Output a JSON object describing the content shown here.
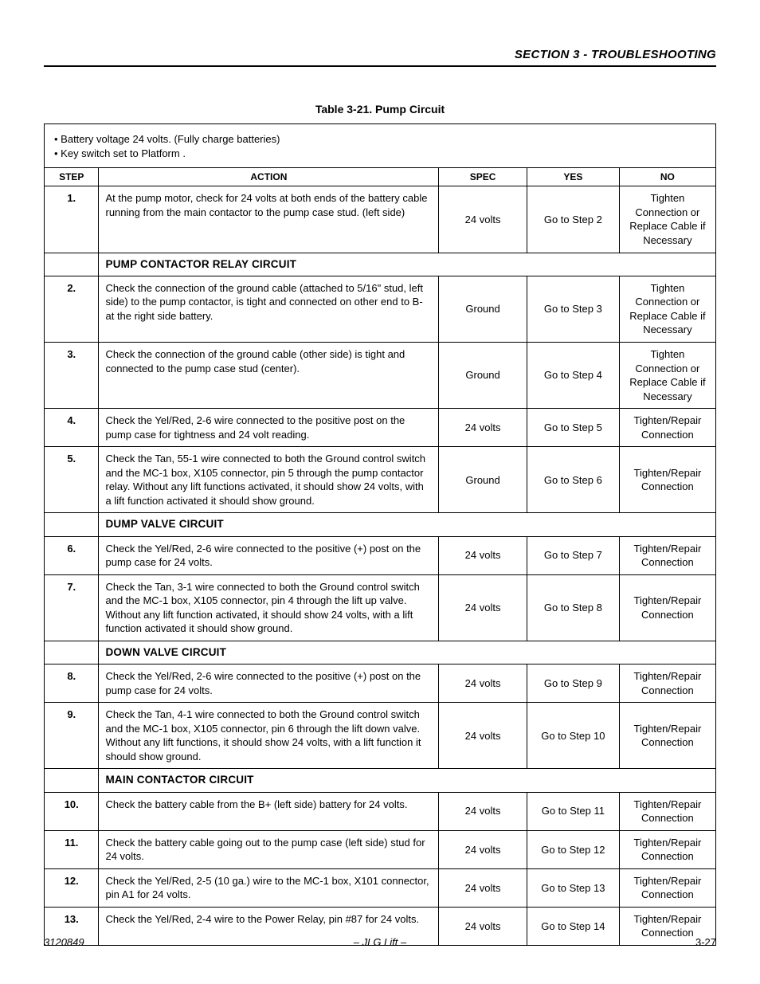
{
  "header": {
    "section_title": "SECTION 3 - TROUBLESHOOTING"
  },
  "table": {
    "title": "Table 3-21.  Pump Circuit",
    "preconditions": [
      "• Battery voltage 24 volts. (Fully charge batteries)",
      "• Key switch set to Platform ."
    ],
    "columns": {
      "step": "STEP",
      "action": "ACTION",
      "spec": "SPEC",
      "yes": "YES",
      "no": "NO"
    },
    "rows": [
      {
        "type": "data",
        "step": "1.",
        "action": "At the pump motor, check for 24 volts at both ends of the battery cable running from the main contactor to the pump case stud. (left side)",
        "spec": "24 volts",
        "yes": "Go to Step 2",
        "no": "Tighten Connection or Replace Cable if Necessary"
      },
      {
        "type": "section",
        "label": "PUMP CONTACTOR RELAY CIRCUIT"
      },
      {
        "type": "data",
        "step": "2.",
        "action": "Check the connection of the ground cable (attached to 5/16\" stud, left side) to the pump contactor,  is tight and connected on other end to B- at the right side battery.",
        "spec": "Ground",
        "yes": "Go to Step 3",
        "no": "Tighten Connection or Replace Cable if Necessary"
      },
      {
        "type": "data",
        "step": "3.",
        "action": "Check the connection of the ground cable (other side) is tight and connected to the pump case stud (center).",
        "spec": "Ground",
        "yes": "Go to Step 4",
        "no": "Tighten Connection or Replace Cable if Necessary"
      },
      {
        "type": "data",
        "step": "4.",
        "action": "Check the Yel/Red, 2-6 wire connected to the positive post on the pump case for tightness and 24 volt reading.",
        "spec": "24 volts",
        "yes": "Go to Step 5",
        "no": "Tighten/Repair Connection"
      },
      {
        "type": "data",
        "step": "5.",
        "action": "Check the Tan, 55-1 wire connected to both the Ground control switch and the MC-1 box, X105 connector, pin 5 through the pump contactor relay. Without any lift functions activated, it should show 24 volts, with a lift function activated it should show ground.",
        "spec": "Ground",
        "yes": "Go to Step 6",
        "no": "Tighten/Repair Connection"
      },
      {
        "type": "section",
        "label": "DUMP VALVE CIRCUIT"
      },
      {
        "type": "data",
        "step": "6.",
        "action": "Check the Yel/Red, 2-6 wire connected to the positive (+) post on the pump case for 24 volts.",
        "spec": "24 volts",
        "yes": "Go to Step 7",
        "no": "Tighten/Repair Connection"
      },
      {
        "type": "data",
        "step": "7.",
        "action": "Check the Tan, 3-1 wire connected to both the Ground control switch and the MC-1 box, X105 connector, pin 4 through the lift up valve. Without any lift function activated, it should show 24 volts, with a lift function activated it should show ground.",
        "spec": "24 volts",
        "yes": "Go to Step 8",
        "no": "Tighten/Repair Connection"
      },
      {
        "type": "section",
        "label": "DOWN VALVE CIRCUIT"
      },
      {
        "type": "data",
        "step": "8.",
        "action": "Check the Yel/Red, 2-6 wire connected to the positive (+) post on the pump case for 24 volts.",
        "spec": "24 volts",
        "yes": "Go to Step 9",
        "no": "Tighten/Repair Connection"
      },
      {
        "type": "data",
        "step": "9.",
        "action": "Check the Tan, 4-1 wire connected to both the Ground control switch and the MC-1 box, X105 connector, pin 6 through the lift down valve. Without any lift functions, it should show 24 volts, with a lift function it should show ground.",
        "spec": "24 volts",
        "yes": "Go to Step 10",
        "no": "Tighten/Repair Connection"
      },
      {
        "type": "section",
        "label": "MAIN CONTACTOR CIRCUIT"
      },
      {
        "type": "data",
        "step": "10.",
        "action": "Check the battery cable from the B+ (left side) battery for 24 volts.",
        "spec": "24 volts",
        "yes": "Go to Step 11",
        "no": "Tighten/Repair Connection"
      },
      {
        "type": "data",
        "step": "11.",
        "action": "Check the battery cable going out to the pump case (left side) stud for 24 volts.",
        "spec": "24 volts",
        "yes": "Go to Step 12",
        "no": "Tighten/Repair Connection"
      },
      {
        "type": "data",
        "step": "12.",
        "action": "Check the Yel/Red, 2-5 (10 ga.) wire to the MC-1 box, X101 connector, pin A1 for 24 volts.",
        "spec": "24 volts",
        "yes": "Go to Step 13",
        "no": "Tighten/Repair Connection"
      },
      {
        "type": "data",
        "step": "13.",
        "action": "Check the Yel/Red, 2-4  wire to the Power Relay, pin #87 for 24 volts.",
        "spec": "24 volts",
        "yes": "Go to Step 14",
        "no": "Tighten/Repair Connection"
      }
    ]
  },
  "footer": {
    "doc_id": "3120849",
    "center_text": "– JLG Lift –",
    "page_label": "3-27"
  }
}
